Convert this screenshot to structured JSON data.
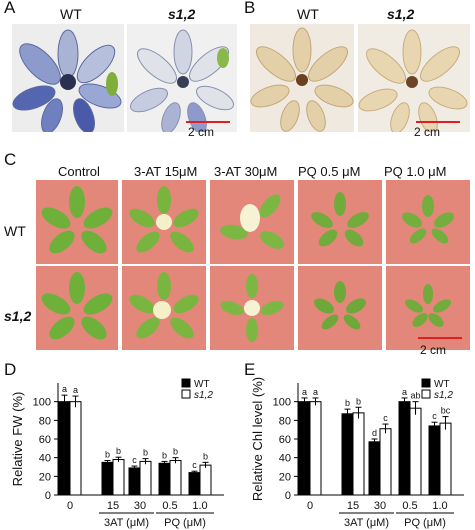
{
  "panel_A": {
    "label": "A",
    "titles": [
      {
        "text": "WT",
        "italic": false
      },
      {
        "text": "s1,2",
        "italic": true
      }
    ],
    "scale_bar": "2 cm"
  },
  "panel_B": {
    "label": "B",
    "titles": [
      {
        "text": "WT",
        "italic": false
      },
      {
        "text": "s1,2",
        "italic": true
      }
    ],
    "scale_bar": "2 cm"
  },
  "panel_C": {
    "label": "C",
    "columns": [
      "Control",
      "3-AT 15μM",
      "3-AT 30μM",
      "PQ 0.5 μM",
      "PQ 1.0 μM"
    ],
    "rows": [
      {
        "text": "WT",
        "italic": false
      },
      {
        "text": "s1,2",
        "italic": true
      }
    ],
    "scale_bar": "2 cm"
  },
  "chart_data": [
    {
      "panel": "D",
      "type": "bar",
      "ylabel": "Relative FW (%)",
      "ylim": [
        0,
        120
      ],
      "yticks": [
        0,
        20,
        40,
        60,
        80,
        100
      ],
      "categories": [
        "0",
        "15",
        "30",
        "0.5",
        "1.0"
      ],
      "groups": [
        {
          "name": "3AT (μM)",
          "categories": [
            "15",
            "30"
          ]
        },
        {
          "name": "PQ (μM)",
          "categories": [
            "0.5",
            "1.0"
          ]
        }
      ],
      "legend_position": "top-right",
      "series": [
        {
          "name": "WT",
          "color": "#000000",
          "values": [
            100,
            35,
            29,
            34,
            24
          ],
          "errors": [
            7,
            2,
            2,
            2,
            1.5
          ],
          "letters": [
            "a",
            "b",
            "c",
            "b",
            "c"
          ]
        },
        {
          "name": "s1,2",
          "color": "#ffffff",
          "values": [
            100,
            38,
            36,
            37,
            32
          ],
          "errors": [
            6,
            2.5,
            3,
            3,
            3
          ],
          "letters": [
            "a",
            "b",
            "b",
            "b",
            "b"
          ]
        }
      ]
    },
    {
      "panel": "E",
      "type": "bar",
      "ylabel": "Relative Chl level (%)",
      "ylim": [
        0,
        120
      ],
      "yticks": [
        0,
        20,
        40,
        60,
        80,
        100
      ],
      "categories": [
        "0",
        "15",
        "30",
        "0.5",
        "1.0"
      ],
      "groups": [
        {
          "name": "3AT (μM)",
          "categories": [
            "15",
            "30"
          ]
        },
        {
          "name": "PQ (μM)",
          "categories": [
            "0.5",
            "1.0"
          ]
        }
      ],
      "legend_position": "top-right",
      "series": [
        {
          "name": "WT",
          "color": "#000000",
          "values": [
            100,
            87,
            57,
            100,
            74
          ],
          "errors": [
            4,
            5,
            3,
            4,
            4
          ],
          "letters": [
            "a",
            "b",
            "d",
            "a",
            "c"
          ]
        },
        {
          "name": "s1,2",
          "color": "#ffffff",
          "values": [
            100,
            88,
            71,
            93,
            77
          ],
          "errors": [
            4,
            6,
            5,
            7,
            7
          ],
          "letters": [
            "a",
            "b",
            "c",
            "ab",
            "bc"
          ]
        }
      ]
    }
  ]
}
